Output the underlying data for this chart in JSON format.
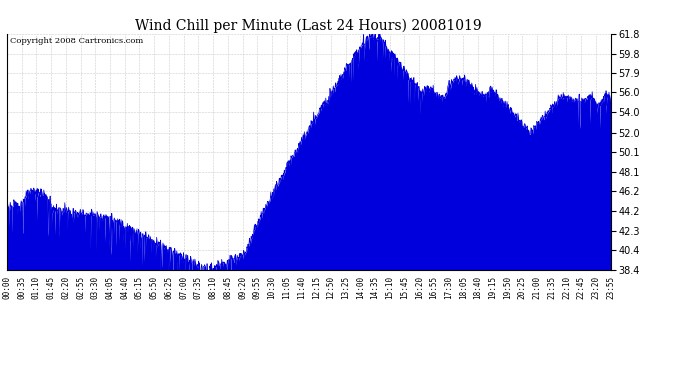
{
  "title": "Wind Chill per Minute (Last 24 Hours) 20081019",
  "copyright": "Copyright 2008 Cartronics.com",
  "line_color": "#0000dd",
  "bg_color": "#ffffff",
  "grid_color": "#cccccc",
  "ylim": [
    38.4,
    61.8
  ],
  "yticks": [
    38.4,
    40.4,
    42.3,
    44.2,
    46.2,
    48.1,
    50.1,
    52.0,
    54.0,
    56.0,
    57.9,
    59.8,
    61.8
  ],
  "xtick_labels": [
    "00:00",
    "00:35",
    "01:10",
    "01:45",
    "02:20",
    "02:55",
    "03:30",
    "04:05",
    "04:40",
    "05:15",
    "05:50",
    "06:25",
    "07:00",
    "07:35",
    "08:10",
    "08:45",
    "09:20",
    "09:55",
    "10:30",
    "11:05",
    "11:40",
    "12:15",
    "12:50",
    "13:25",
    "14:00",
    "14:35",
    "15:10",
    "15:45",
    "16:20",
    "16:55",
    "17:30",
    "18:05",
    "18:40",
    "19:15",
    "19:50",
    "20:25",
    "21:00",
    "21:35",
    "22:10",
    "22:45",
    "23:20",
    "23:55"
  ]
}
